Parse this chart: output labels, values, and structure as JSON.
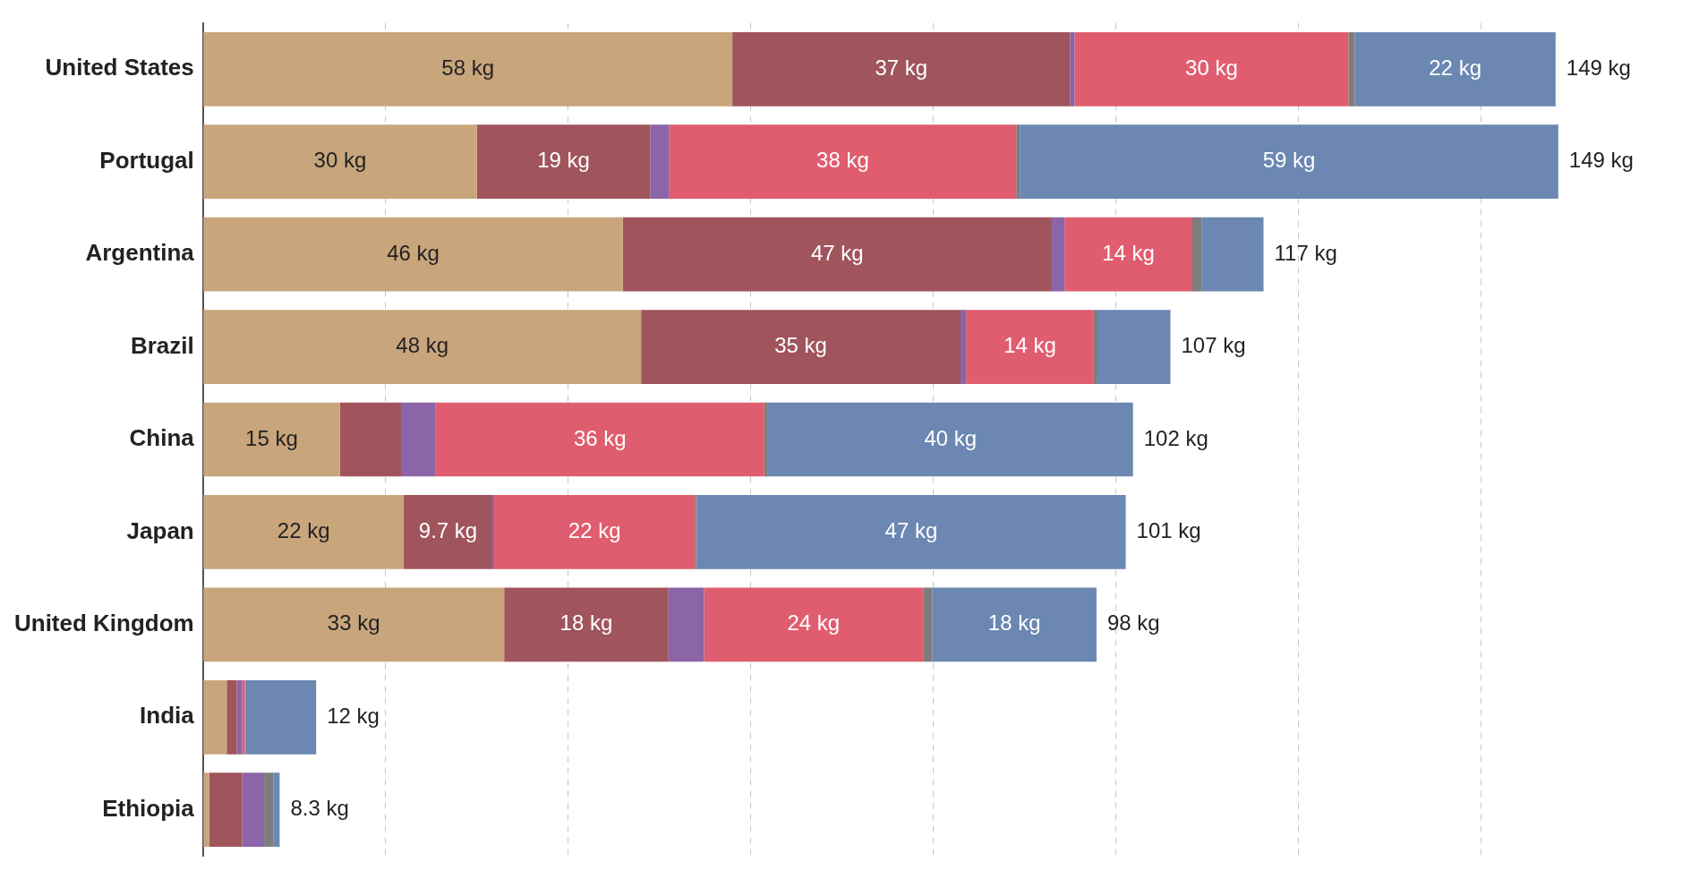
{
  "chart_data": {
    "type": "bar",
    "orientation": "horizontal",
    "stacked": true,
    "categories": [
      "United States",
      "Portugal",
      "Argentina",
      "Brazil",
      "China",
      "Japan",
      "United Kingdom",
      "India",
      "Ethiopia"
    ],
    "series": [
      {
        "color": "#c9a57c",
        "values": [
          58,
          30,
          46,
          48,
          15,
          22,
          33,
          2.6,
          0.7
        ],
        "value_labels": [
          "58 kg",
          "30 kg",
          "46 kg",
          "48 kg",
          "15 kg",
          "22 kg",
          "33 kg",
          null,
          null
        ]
      },
      {
        "color": "#a0545c",
        "values": [
          37,
          19,
          47,
          35,
          6.7,
          9.7,
          18,
          1.1,
          3.6
        ],
        "value_labels": [
          "37 kg",
          "19 kg",
          "47 kg",
          "35 kg",
          null,
          "9.7 kg",
          "18 kg",
          null,
          null
        ]
      },
      {
        "color": "#8c64a8",
        "values": [
          0.5,
          2.1,
          1.4,
          0.6,
          3.8,
          0.2,
          3.9,
          0.6,
          2.4
        ],
        "value_labels": [
          null,
          null,
          null,
          null,
          null,
          null,
          null,
          null,
          null
        ]
      },
      {
        "color": "#e05d6f",
        "values": [
          30,
          38,
          14,
          14,
          36,
          22,
          24,
          0.3,
          0
        ],
        "value_labels": [
          "30 kg",
          "38 kg",
          "14 kg",
          "14 kg",
          "36 kg",
          "22 kg",
          "24 kg",
          null,
          null
        ]
      },
      {
        "color": "#7d7d7d",
        "values": [
          0.7,
          0.4,
          1.0,
          0.4,
          0.4,
          0.2,
          1.0,
          0.1,
          1.0
        ],
        "value_labels": [
          null,
          null,
          null,
          null,
          null,
          null,
          null,
          null,
          null
        ]
      },
      {
        "color": "#6b87b2",
        "values": [
          22,
          59,
          6.8,
          8,
          40,
          47,
          18,
          7.7,
          0.7
        ],
        "value_labels": [
          "22 kg",
          "59 kg",
          null,
          null,
          "40 kg",
          "47 kg",
          "18 kg",
          null,
          null
        ]
      }
    ],
    "totals": [
      "149 kg",
      "149 kg",
      "117 kg",
      "107 kg",
      "102 kg",
      "101 kg",
      "98 kg",
      "12 kg",
      "8.3 kg"
    ],
    "xlim": [
      0,
      149.3
    ],
    "xticks": [
      {
        "value": 0,
        "label": null
      },
      {
        "value": 20,
        "label": null
      },
      {
        "value": 40,
        "label": null
      },
      {
        "value": 60,
        "label": null
      },
      {
        "value": 80,
        "label": null
      },
      {
        "value": 100,
        "label": null
      },
      {
        "value": 120,
        "label": null
      },
      {
        "value": 140,
        "label": null
      }
    ],
    "tick_labels": "y",
    "grid": "x",
    "legend": false
  }
}
